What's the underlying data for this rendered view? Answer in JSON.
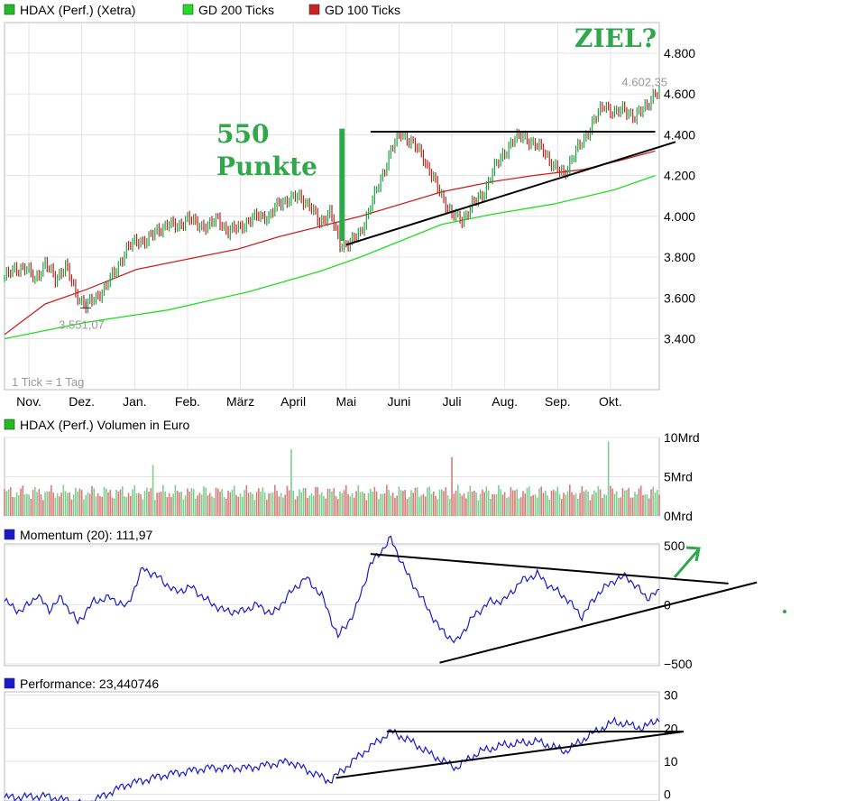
{
  "colors": {
    "price_up": "#20a040",
    "price_down": "#c02020",
    "gd200": "#22dd22",
    "gd100": "#cc2222",
    "indicator": "#1a1acc",
    "volume_up": "#7ccf8c",
    "volume_down": "#d97a7a",
    "annotation": "#2ea84a"
  },
  "chart_data": [
    {
      "type": "line",
      "panel": "price",
      "title": "HDAX (Perf.) (Xetra)",
      "legend": [
        {
          "label": "HDAX (Perf.) (Xetra)",
          "color": "#22bb22"
        },
        {
          "label": "GD 200 Ticks",
          "color": "#22dd22"
        },
        {
          "label": "GD 100 Ticks",
          "color": "#cc2222"
        }
      ],
      "x_labels": [
        "Nov.",
        "Dez.",
        "Jan.",
        "Feb.",
        "März",
        "April",
        "Mai",
        "Juni",
        "Juli",
        "Aug.",
        "Sep.",
        "Okt."
      ],
      "y_ticks": [
        "4.800",
        "4.600",
        "4.400",
        "4.200",
        "4.000",
        "3.800",
        "3.600",
        "3.400"
      ],
      "ylim": [
        3150,
        4950
      ],
      "note": "1 Tick = 1 Tag",
      "low_label": "3.551,07",
      "high_label": "4.602,35",
      "series": [
        {
          "name": "HDAX (Perf.) (Xetra)",
          "points": [
            [
              0,
              3700
            ],
            [
              5,
              3740
            ],
            [
              10,
              3750
            ],
            [
              15,
              3690
            ],
            [
              20,
              3770
            ],
            [
              25,
              3690
            ],
            [
              30,
              3760
            ],
            [
              35,
              3620
            ],
            [
              40,
              3560
            ],
            [
              45,
              3600
            ],
            [
              50,
              3660
            ],
            [
              55,
              3740
            ],
            [
              60,
              3840
            ],
            [
              65,
              3880
            ],
            [
              70,
              3880
            ],
            [
              75,
              3930
            ],
            [
              80,
              3960
            ],
            [
              85,
              3950
            ],
            [
              90,
              3990
            ],
            [
              95,
              3960
            ],
            [
              100,
              3950
            ],
            [
              105,
              3990
            ],
            [
              110,
              3920
            ],
            [
              115,
              3950
            ],
            [
              120,
              3970
            ],
            [
              125,
              4010
            ],
            [
              130,
              3990
            ],
            [
              135,
              4070
            ],
            [
              140,
              4080
            ],
            [
              145,
              4100
            ],
            [
              150,
              4050
            ],
            [
              155,
              3970
            ],
            [
              160,
              4020
            ],
            [
              165,
              3860
            ],
            [
              170,
              3870
            ],
            [
              175,
              3920
            ],
            [
              180,
              4050
            ],
            [
              185,
              4180
            ],
            [
              190,
              4320
            ],
            [
              195,
              4410
            ],
            [
              200,
              4360
            ],
            [
              205,
              4310
            ],
            [
              210,
              4200
            ],
            [
              215,
              4100
            ],
            [
              220,
              4010
            ],
            [
              225,
              3980
            ],
            [
              230,
              4060
            ],
            [
              235,
              4100
            ],
            [
              240,
              4220
            ],
            [
              245,
              4300
            ],
            [
              250,
              4370
            ],
            [
              255,
              4400
            ],
            [
              260,
              4350
            ],
            [
              265,
              4330
            ],
            [
              270,
              4240
            ],
            [
              275,
              4210
            ],
            [
              280,
              4300
            ],
            [
              285,
              4380
            ],
            [
              290,
              4470
            ],
            [
              295,
              4550
            ],
            [
              300,
              4500
            ],
            [
              305,
              4530
            ],
            [
              310,
              4480
            ],
            [
              315,
              4540
            ],
            [
              320,
              4600
            ]
          ]
        },
        {
          "name": "GD 200 Ticks",
          "points": [
            [
              0,
              3400
            ],
            [
              40,
              3480
            ],
            [
              80,
              3540
            ],
            [
              120,
              3630
            ],
            [
              155,
              3730
            ],
            [
              175,
              3800
            ],
            [
              195,
              3880
            ],
            [
              215,
              3960
            ],
            [
              240,
              4010
            ],
            [
              270,
              4060
            ],
            [
              300,
              4130
            ],
            [
              320,
              4200
            ]
          ]
        },
        {
          "name": "GD 100 Ticks",
          "points": [
            [
              0,
              3420
            ],
            [
              20,
              3570
            ],
            [
              40,
              3640
            ],
            [
              65,
              3740
            ],
            [
              95,
              3800
            ],
            [
              115,
              3840
            ],
            [
              135,
              3900
            ],
            [
              155,
              3950
            ],
            [
              175,
              4000
            ],
            [
              195,
              4060
            ],
            [
              215,
              4120
            ],
            [
              240,
              4170
            ],
            [
              260,
              4200
            ],
            [
              285,
              4230
            ],
            [
              305,
              4280
            ],
            [
              320,
              4320
            ]
          ]
        }
      ],
      "trendlines": [
        {
          "name": "resistance",
          "points": [
            [
              180,
              4415
            ],
            [
              320,
              4415
            ]
          ]
        },
        {
          "name": "support",
          "points": [
            [
              168,
              3860
            ],
            [
              330,
              4365
            ]
          ]
        }
      ],
      "annotations": {
        "title": "ZIEL?",
        "gain_value": "550",
        "gain_unit": "Punkte",
        "gain_from": 3880,
        "gain_to": 4430,
        "gain_x": 166
      }
    },
    {
      "type": "bar",
      "panel": "volume",
      "title": "HDAX (Perf.) Volumen in Euro",
      "y_ticks": [
        "10Mrd",
        "5Mrd",
        "0Mrd"
      ],
      "ylim": [
        0,
        10
      ],
      "base_level": 3.0,
      "spikes": [
        {
          "x": 73,
          "value": 6.5
        },
        {
          "x": 141,
          "value": 8.5
        },
        {
          "x": 220,
          "value": 7.5
        },
        {
          "x": 297,
          "value": 9.5
        }
      ]
    },
    {
      "type": "line",
      "panel": "momentum",
      "title": "Momentum (20): 111,97",
      "y_ticks": [
        "500",
        "0",
        "−500"
      ],
      "ylim": [
        -500,
        500
      ],
      "series": [
        {
          "name": "Momentum (20)",
          "points": [
            [
              0,
              30
            ],
            [
              8,
              -60
            ],
            [
              16,
              80
            ],
            [
              22,
              -40
            ],
            [
              28,
              60
            ],
            [
              36,
              -150
            ],
            [
              44,
              30
            ],
            [
              52,
              60
            ],
            [
              60,
              -20
            ],
            [
              68,
              310
            ],
            [
              76,
              230
            ],
            [
              84,
              110
            ],
            [
              92,
              150
            ],
            [
              100,
              30
            ],
            [
              108,
              -50
            ],
            [
              116,
              -60
            ],
            [
              124,
              0
            ],
            [
              132,
              -80
            ],
            [
              140,
              90
            ],
            [
              148,
              230
            ],
            [
              156,
              80
            ],
            [
              164,
              -270
            ],
            [
              172,
              -70
            ],
            [
              180,
              340
            ],
            [
              190,
              560
            ],
            [
              198,
              260
            ],
            [
              206,
              30
            ],
            [
              214,
              -200
            ],
            [
              222,
              -320
            ],
            [
              230,
              -110
            ],
            [
              238,
              20
            ],
            [
              246,
              40
            ],
            [
              254,
              200
            ],
            [
              262,
              260
            ],
            [
              268,
              160
            ],
            [
              276,
              60
            ],
            [
              284,
              -100
            ],
            [
              292,
              100
            ],
            [
              300,
              210
            ],
            [
              306,
              240
            ],
            [
              312,
              130
            ],
            [
              316,
              60
            ],
            [
              322,
              110
            ]
          ]
        }
      ],
      "trendlines": [
        {
          "name": "upper",
          "points": [
            [
              180,
              430
            ],
            [
              356,
              180
            ]
          ]
        },
        {
          "name": "lower",
          "points": [
            [
              214,
              -490
            ],
            [
              370,
              190
            ]
          ]
        }
      ]
    },
    {
      "type": "line",
      "panel": "performance",
      "title": "Performance: 23,440746",
      "y_ticks": [
        "30",
        "20",
        "10",
        "0"
      ],
      "ylim": [
        -2,
        31
      ],
      "series": [
        {
          "name": "Performance",
          "points": [
            [
              0,
              -1
            ],
            [
              20,
              -0.5
            ],
            [
              40,
              -3
            ],
            [
              60,
              3
            ],
            [
              80,
              6
            ],
            [
              100,
              8
            ],
            [
              120,
              8
            ],
            [
              140,
              10
            ],
            [
              160,
              4
            ],
            [
              175,
              12
            ],
            [
              190,
              19
            ],
            [
              200,
              16
            ],
            [
              210,
              12
            ],
            [
              222,
              8
            ],
            [
              234,
              13
            ],
            [
              246,
              15
            ],
            [
              262,
              16
            ],
            [
              276,
              13
            ],
            [
              288,
              18
            ],
            [
              300,
              22
            ],
            [
              314,
              20
            ],
            [
              322,
              23
            ]
          ]
        }
      ],
      "trendlines": [
        {
          "name": "upper",
          "points": [
            [
              188,
              19
            ],
            [
              334,
              19
            ]
          ]
        },
        {
          "name": "lower",
          "points": [
            [
              163,
              5
            ],
            [
              334,
              19
            ]
          ]
        }
      ]
    }
  ]
}
